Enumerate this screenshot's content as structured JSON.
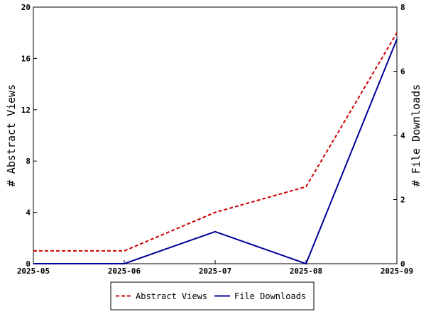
{
  "chart_data": {
    "type": "line",
    "title": "",
    "x": [
      "2025-05",
      "2025-06",
      "2025-07",
      "2025-08",
      "2025-09"
    ],
    "left_axis": {
      "label": "# Abstract Views",
      "ylim": [
        0,
        20
      ],
      "ticks": [
        "0",
        "4",
        "8",
        "12",
        "16",
        "20"
      ]
    },
    "right_axis": {
      "label": "# File Downloads",
      "ylim": [
        0,
        8
      ],
      "ticks": [
        "0",
        "2",
        "4",
        "6",
        "8"
      ]
    },
    "series": [
      {
        "name": "Abstract Views",
        "axis": "left",
        "color": "#cc0000",
        "dash": "dashed",
        "values": [
          1,
          1,
          4,
          6,
          18
        ]
      },
      {
        "name": "File Downloads",
        "axis": "right",
        "color": "#000099",
        "dash": "solid",
        "values": [
          0,
          0,
          1,
          0,
          7
        ]
      }
    ],
    "grid": false,
    "legend_position": "bottom-center"
  }
}
